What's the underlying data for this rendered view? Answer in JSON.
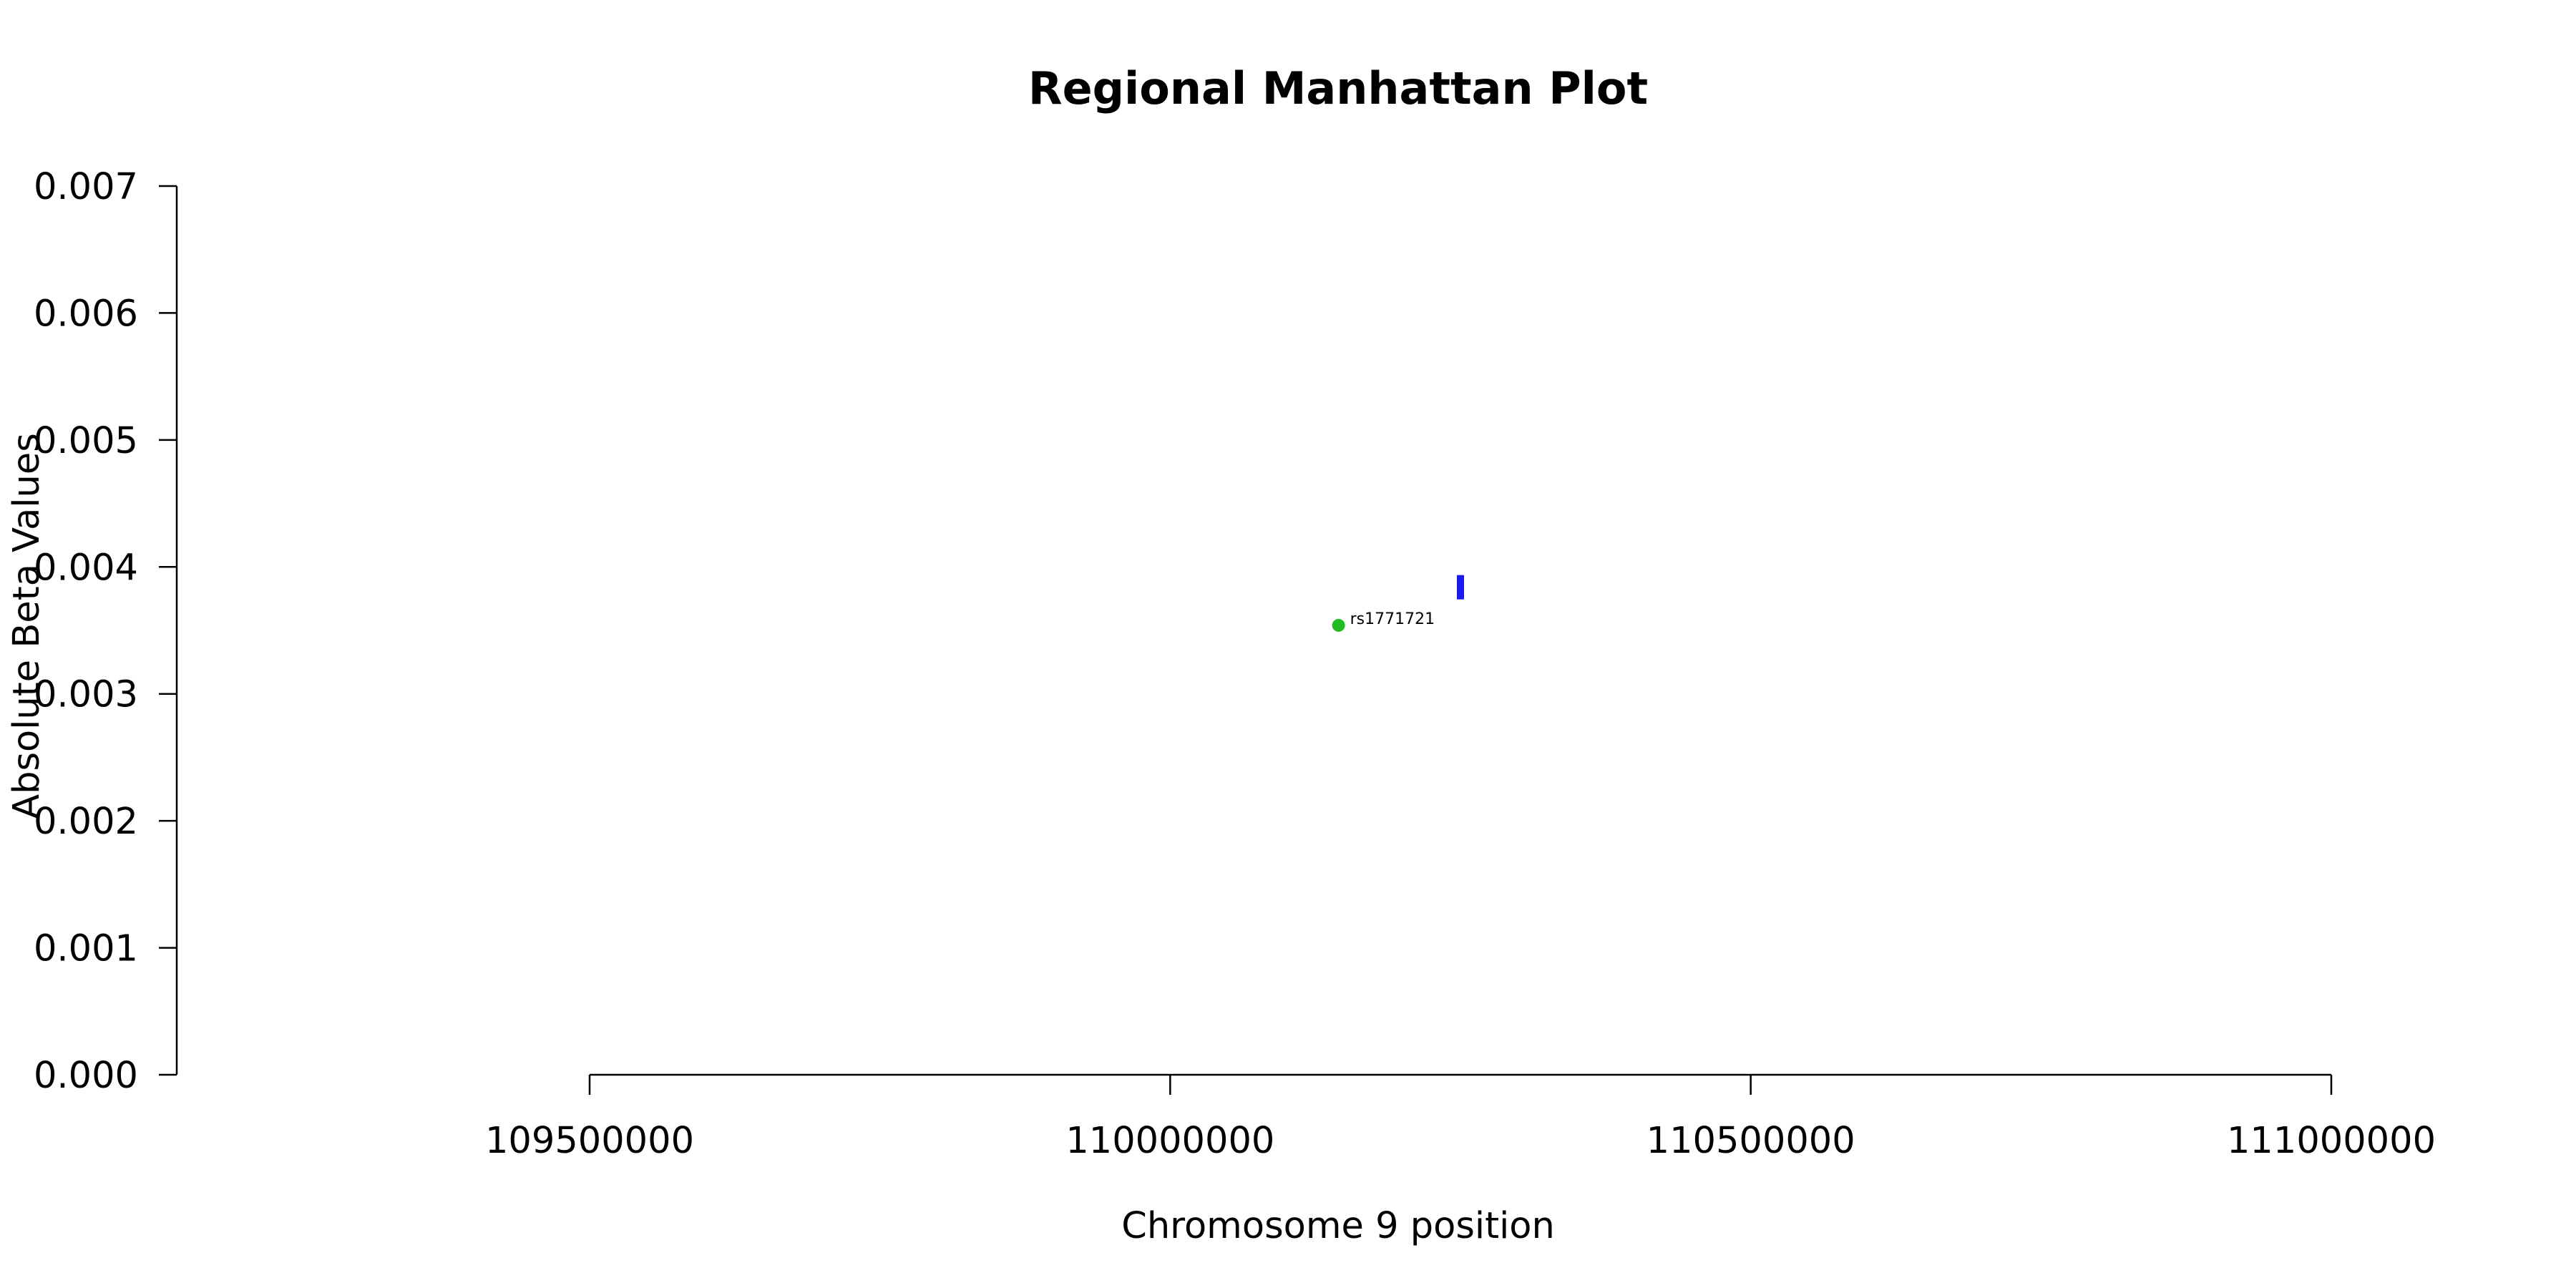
{
  "chart_data": {
    "type": "scatter",
    "title": "Regional Manhattan Plot",
    "xlabel": "Chromosome 9 position",
    "ylabel": "Absolute Beta Values",
    "xlim": [
      109500000,
      111000000
    ],
    "ylim": [
      0,
      0.007
    ],
    "x_ticks": [
      "109500000",
      "110000000",
      "110500000",
      "111000000"
    ],
    "y_ticks": [
      "0.000",
      "0.001",
      "0.002",
      "0.003",
      "0.004",
      "0.005",
      "0.006",
      "0.007"
    ],
    "points": [
      {
        "x": 110145000,
        "y": 0.00354,
        "color": "#22bb22",
        "shape": "circle",
        "label": "rs1771721"
      },
      {
        "x": 110250000,
        "y": 0.00384,
        "color": "#1a1aee",
        "shape": "bar"
      }
    ]
  }
}
